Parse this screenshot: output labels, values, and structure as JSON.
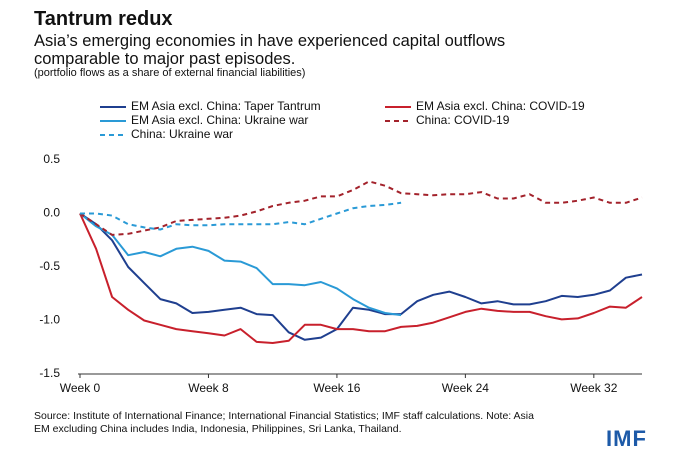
{
  "chart_data": {
    "type": "line",
    "title": "Tantrum redux",
    "subtitle": "Asia’s emerging economies in have experienced capital outflows comparable to major past episodes.",
    "note": "(portfolio flows as a share of external financial liabilities)",
    "source": "Source: Institute of International Finance; International Financial Statistics; IMF staff calculations. Note: Asia EM excluding China includes India, Indonesia, Philippines, Sri Lanka, Thailand.",
    "logo": "IMF",
    "x": [
      0,
      1,
      2,
      3,
      4,
      5,
      6,
      7,
      8,
      9,
      10,
      11,
      12,
      13,
      14,
      15,
      16,
      17,
      18,
      19,
      20,
      21,
      22,
      23,
      24,
      25,
      26,
      27,
      28,
      29,
      30,
      31,
      32,
      33,
      34,
      35
    ],
    "xlim": [
      0,
      35
    ],
    "xticks": [
      {
        "value": 0,
        "label": "Week 0"
      },
      {
        "value": 8,
        "label": "Week 8"
      },
      {
        "value": 16,
        "label": "Week 16"
      },
      {
        "value": 24,
        "label": "Week 24"
      },
      {
        "value": 32,
        "label": "Week 32"
      }
    ],
    "ylim": [
      -1.5,
      0.5
    ],
    "yticks": [
      {
        "value": 0.5,
        "label": "0.5"
      },
      {
        "value": 0,
        "label": "0.0"
      },
      {
        "value": -0.5,
        "label": "-0.5"
      },
      {
        "value": -1,
        "label": "-1.0"
      },
      {
        "value": -1.5,
        "label": "-1.5"
      }
    ],
    "grid": false,
    "series": [
      {
        "name": "EM Asia excl. China: Taper Tantrum",
        "color": "#1f3f8f",
        "style": "solid",
        "values": [
          0,
          -0.1,
          -0.25,
          -0.5,
          -0.65,
          -0.8,
          -0.84,
          -0.93,
          -0.92,
          -0.9,
          -0.88,
          -0.94,
          -0.95,
          -1.11,
          -1.18,
          -1.16,
          -1.08,
          -0.88,
          -0.9,
          -0.94,
          -0.94,
          -0.82,
          -0.76,
          -0.73,
          -0.78,
          -0.84,
          -0.82,
          -0.85,
          -0.85,
          -0.82,
          -0.77,
          -0.78,
          -0.76,
          -0.72,
          -0.6,
          -0.57
        ]
      },
      {
        "name": "EM Asia excl. China: COVID-19",
        "color": "#c8202c",
        "style": "solid",
        "values": [
          0,
          -0.33,
          -0.78,
          -0.9,
          -1.0,
          -1.04,
          -1.08,
          -1.1,
          -1.12,
          -1.14,
          -1.08,
          -1.2,
          -1.21,
          -1.19,
          -1.04,
          -1.04,
          -1.08,
          -1.08,
          -1.1,
          -1.1,
          -1.06,
          -1.05,
          -1.02,
          -0.97,
          -0.92,
          -0.89,
          -0.91,
          -0.92,
          -0.92,
          -0.96,
          -0.99,
          -0.98,
          -0.93,
          -0.87,
          -0.88,
          -0.78
        ]
      },
      {
        "name": "EM Asia excl. China: Ukraine war",
        "color": "#2a9ad6",
        "style": "solid",
        "values": [
          0,
          -0.12,
          -0.2,
          -0.39,
          -0.36,
          -0.4,
          -0.33,
          -0.31,
          -0.35,
          -0.44,
          -0.45,
          -0.51,
          -0.66,
          -0.66,
          -0.67,
          -0.64,
          -0.7,
          -0.8,
          -0.88,
          -0.93,
          -0.95,
          null,
          null,
          null,
          null,
          null,
          null,
          null,
          null,
          null,
          null,
          null,
          null,
          null,
          null,
          null
        ]
      },
      {
        "name": "China: COVID-19",
        "color": "#a3222b",
        "style": "dashed",
        "values": [
          0,
          -0.1,
          -0.2,
          -0.19,
          -0.16,
          -0.13,
          -0.07,
          -0.06,
          -0.05,
          -0.04,
          -0.02,
          0.02,
          0.07,
          0.1,
          0.12,
          0.16,
          0.16,
          0.22,
          0.3,
          0.26,
          0.19,
          0.18,
          0.17,
          0.18,
          0.18,
          0.2,
          0.14,
          0.14,
          0.18,
          0.1,
          0.1,
          0.12,
          0.15,
          0.1,
          0.1,
          0.15
        ]
      },
      {
        "name": "China: Ukraine war",
        "color": "#2a9ad6",
        "style": "dashed",
        "values": [
          0,
          0,
          -0.02,
          -0.1,
          -0.13,
          -0.15,
          -0.1,
          -0.11,
          -0.11,
          -0.1,
          -0.1,
          -0.1,
          -0.1,
          -0.08,
          -0.1,
          -0.05,
          0,
          0.05,
          0.07,
          0.08,
          0.1,
          null,
          null,
          null,
          null,
          null,
          null,
          null,
          null,
          null,
          null,
          null,
          null,
          null,
          null,
          null
        ]
      }
    ]
  }
}
